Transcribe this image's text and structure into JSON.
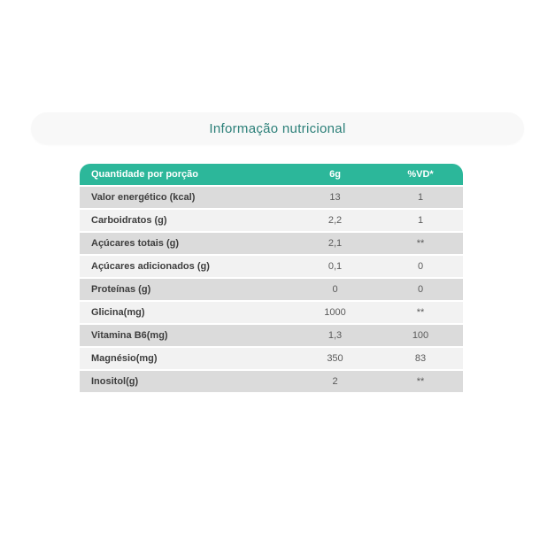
{
  "section": {
    "title": "Informação nutricional"
  },
  "table": {
    "headers": {
      "quantity": "Quantidade por porção",
      "serving": "6g",
      "daily_value": "%VD*"
    },
    "rows": [
      {
        "label": "Valor energético (kcal)",
        "qty": "13",
        "vd": "1"
      },
      {
        "label": "Carboidratos (g)",
        "qty": "2,2",
        "vd": "1"
      },
      {
        "label": "Açúcares totais (g)",
        "qty": "2,1",
        "vd": "**"
      },
      {
        "label": "Açúcares adicionados (g)",
        "qty": "0,1",
        "vd": "0"
      },
      {
        "label": "Proteínas (g)",
        "qty": "0",
        "vd": "0"
      },
      {
        "label": "Glicina(mg)",
        "qty": "1000",
        "vd": "**"
      },
      {
        "label": "Vitamina B6(mg)",
        "qty": "1,3",
        "vd": "100"
      },
      {
        "label": "Magnésio(mg)",
        "qty": "350",
        "vd": "83"
      },
      {
        "label": "Inositol(g)",
        "qty": "2",
        "vd": "**"
      }
    ]
  },
  "colors": {
    "header_bg": "#2cb79a",
    "header_text": "#ffffff",
    "title_text": "#2b7f78",
    "pill_bg": "#f8f8f8",
    "row_odd_bg": "#dbdbdb",
    "row_even_bg": "#f2f2f2",
    "label_text": "#3d3d3d",
    "value_text": "#5a5a5a"
  }
}
